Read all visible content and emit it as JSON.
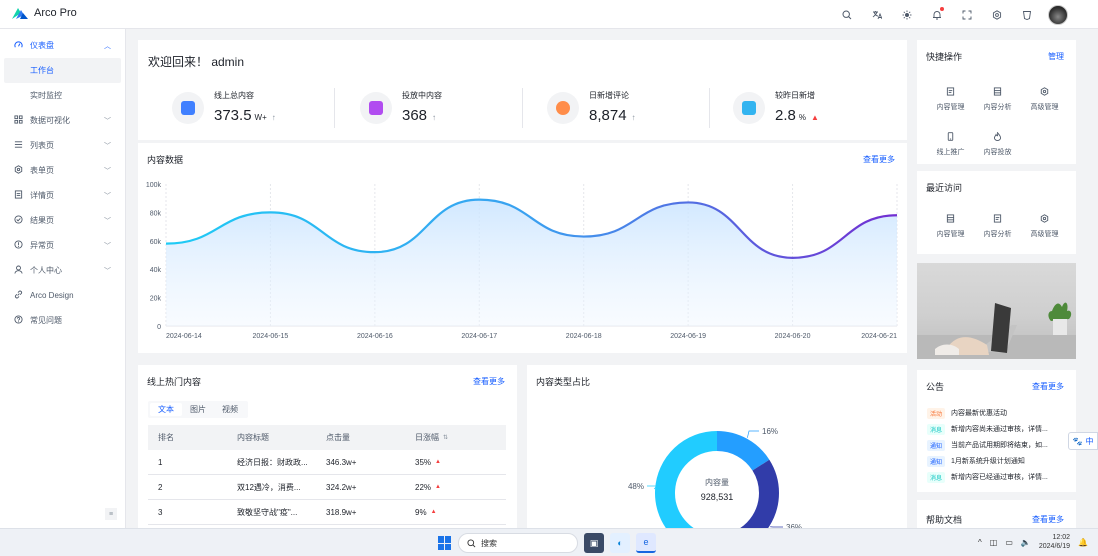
{
  "app": {
    "title": "Arco Pro"
  },
  "colors": {
    "primary": "#165dff",
    "accent_up": "#f53f3f"
  },
  "header": {
    "icons": [
      "search-icon",
      "translate-icon",
      "theme-icon",
      "bell-icon",
      "fullscreen-icon",
      "settings-icon",
      "shield-icon"
    ]
  },
  "sidebar": {
    "items": [
      {
        "label": "仪表盘",
        "icon": "dashboard-icon",
        "expanded": true,
        "children": [
          "工作台",
          "实时监控"
        ],
        "selected": "工作台"
      },
      {
        "label": "数据可视化",
        "icon": "grid-icon"
      },
      {
        "label": "列表页",
        "icon": "list-icon"
      },
      {
        "label": "表单页",
        "icon": "settings-icon"
      },
      {
        "label": "详情页",
        "icon": "file-icon"
      },
      {
        "label": "结果页",
        "icon": "check-circle-icon"
      },
      {
        "label": "异常页",
        "icon": "exclamation-icon"
      },
      {
        "label": "个人中心",
        "icon": "user-icon"
      },
      {
        "label": "Arco Design",
        "icon": "link-icon"
      },
      {
        "label": "常见问题",
        "icon": "question-icon"
      }
    ]
  },
  "welcome": {
    "title": "欢迎回来！ admin",
    "stats": [
      {
        "label": "线上总内容",
        "value": "373.5",
        "unit": "W+",
        "trend": "↑",
        "icon_color": "#4080ff"
      },
      {
        "label": "投放中内容",
        "value": "368",
        "unit": "",
        "trend": "↑",
        "icon_color": "#b14cf0"
      },
      {
        "label": "日新增评论",
        "value": "8,874",
        "unit": "",
        "trend": "↑",
        "icon_color": "#ff8d4a"
      },
      {
        "label": "较昨日新增",
        "value": "2.8",
        "unit": "%",
        "trend": "▲",
        "icon_color": "#33b4f0"
      }
    ]
  },
  "content_data": {
    "title": "内容数据",
    "more": "查看更多"
  },
  "chart_data": [
    {
      "type": "area",
      "title": "内容数据",
      "x": [
        "2024-06-14",
        "2024-06-15",
        "2024-06-16",
        "2024-06-17",
        "2024-06-18",
        "2024-06-19",
        "2024-06-20",
        "2024-06-21"
      ],
      "x_ticks": [
        "2024-06-14",
        "2024-06-15",
        "2024-06-16",
        "2024-06-17",
        "2024-06-18",
        "2024-06-19",
        "2024-06-20",
        "2024-06-21"
      ],
      "values": [
        58000,
        80000,
        52000,
        89000,
        63000,
        87000,
        48000,
        78000
      ],
      "ylim": [
        0,
        100000
      ],
      "y_ticks": [
        "0",
        "20k",
        "40k",
        "60k",
        "80k",
        "100k"
      ],
      "grid": "vertical"
    },
    {
      "type": "pie",
      "title": "内容类型占比",
      "center_label": "内容量",
      "center_value": "928,531",
      "slices": [
        {
          "value": 16,
          "label": "16%",
          "color": "#249eff"
        },
        {
          "value": 36,
          "label": "36%",
          "color": "#313ca9"
        },
        {
          "value": 48,
          "label": "48%",
          "color": "#21ccff"
        }
      ]
    }
  ],
  "hot_content": {
    "title": "线上热门内容",
    "more": "查看更多",
    "tabs": [
      "文本",
      "图片",
      "视频"
    ],
    "active_tab": "文本",
    "columns": [
      "排名",
      "内容标题",
      "点击量",
      "日涨幅"
    ],
    "rows": [
      {
        "rank": "1",
        "title": "经济日报：财政政...",
        "clicks": "346.3w+",
        "change": "35%"
      },
      {
        "rank": "2",
        "title": "双12遇冷，消费...",
        "clicks": "324.2w+",
        "change": "22%"
      },
      {
        "rank": "3",
        "title": "致敬坚守战\"疫\"...",
        "clicks": "318.9w+",
        "change": "9%"
      }
    ]
  },
  "quick_actions": {
    "title": "快捷操作",
    "manage": "管理",
    "items": [
      {
        "label": "内容管理",
        "icon": "file-icon"
      },
      {
        "label": "内容分析",
        "icon": "list-icon"
      },
      {
        "label": "高级管理",
        "icon": "settings-icon"
      },
      {
        "label": "线上推广",
        "icon": "mobile-icon"
      },
      {
        "label": "内容投放",
        "icon": "fire-icon"
      }
    ]
  },
  "recent": {
    "title": "最近访问",
    "items": [
      {
        "label": "内容管理",
        "icon": "list-icon"
      },
      {
        "label": "内容分析",
        "icon": "file-icon"
      },
      {
        "label": "高级管理",
        "icon": "settings-icon"
      }
    ]
  },
  "notice": {
    "title": "公告",
    "more": "查看更多",
    "items": [
      {
        "tag": "活动",
        "tag_color": "orange",
        "text": "内容最新优惠活动"
      },
      {
        "tag": "消息",
        "tag_color": "cyan",
        "text": "新增内容尚未通过审核，详情..."
      },
      {
        "tag": "通知",
        "tag_color": "blue",
        "text": "当前产品试用期即将结束，如..."
      },
      {
        "tag": "通知",
        "tag_color": "blue",
        "text": "1月新系统升级计划通知"
      },
      {
        "tag": "消息",
        "tag_color": "cyan",
        "text": "新增内容已经通过审核，详情..."
      }
    ]
  },
  "help": {
    "title": "帮助文档",
    "more": "查看更多"
  },
  "float_button": {
    "label": "中"
  },
  "taskbar": {
    "search": "搜索",
    "time": "12:02",
    "date": "2024/6/19"
  }
}
